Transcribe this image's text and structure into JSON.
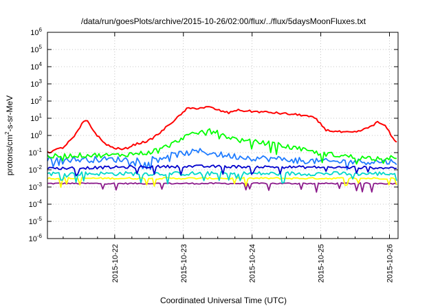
{
  "chart_data": {
    "type": "line",
    "title": "/data/run/goesPlots/archive/2015-10-26/02:00/flux/../flux/5daysMoonFluxes.txt",
    "xlabel": "Coordinated Universal Time (UTC)",
    "ylabel": "protons/cm²-s-sr-MeV",
    "yscale": "log",
    "ylim": [
      "1e-6",
      "1e6"
    ],
    "xlim": [
      "2015-10-21T00:30",
      "2015-10-26T03:00"
    ],
    "y_ticks": [
      {
        "base": "10",
        "exp": "-6",
        "value": 1e-06
      },
      {
        "base": "10",
        "exp": "-5",
        "value": 1e-05
      },
      {
        "base": "10",
        "exp": "-4",
        "value": 0.0001
      },
      {
        "base": "10",
        "exp": "-3",
        "value": 0.001
      },
      {
        "base": "10",
        "exp": "-2",
        "value": 0.01
      },
      {
        "base": "10",
        "exp": "-1",
        "value": 0.1
      },
      {
        "base": "10",
        "exp": "0",
        "value": 1
      },
      {
        "base": "10",
        "exp": "1",
        "value": 10
      },
      {
        "base": "10",
        "exp": "2",
        "value": 100
      },
      {
        "base": "10",
        "exp": "3",
        "value": 1000
      },
      {
        "base": "10",
        "exp": "4",
        "value": 10000
      },
      {
        "base": "10",
        "exp": "5",
        "value": 100000
      },
      {
        "base": "10",
        "exp": "6",
        "value": 1000000
      }
    ],
    "x_ticks": [
      "2015-10-22",
      "2015-10-23",
      "2015-10-24",
      "2015-10-25",
      "2015-10-26"
    ],
    "grid": true,
    "legend": "none",
    "series": [
      {
        "color": "#ff0000",
        "noise": 0.06,
        "x": [
          "2015-10-21T00:30",
          "2015-10-21T06:00",
          "2015-10-21T10:00",
          "2015-10-21T13:00",
          "2015-10-21T14:30",
          "2015-10-21T17:00",
          "2015-10-21T20:00",
          "2015-10-21T23:00",
          "2015-10-22T03:00",
          "2015-10-22T07:00",
          "2015-10-22T12:00",
          "2015-10-22T16:00",
          "2015-10-22T20:00",
          "2015-10-22T23:00",
          "2015-10-23T01:00",
          "2015-10-23T06:00",
          "2015-10-23T09:00",
          "2015-10-23T12:00",
          "2015-10-23T16:00",
          "2015-10-23T18:00",
          "2015-10-24T00:00",
          "2015-10-24T06:00",
          "2015-10-24T12:00",
          "2015-10-24T18:00",
          "2015-10-24T22:00",
          "2015-10-25T02:00",
          "2015-10-25T08:00",
          "2015-10-25T12:00",
          "2015-10-25T16:00",
          "2015-10-25T20:00",
          "2015-10-25T23:00",
          "2015-10-26T01:00",
          "2015-10-26T03:00"
        ],
        "y": [
          0.1,
          0.2,
          0.9,
          6,
          7,
          1.5,
          0.4,
          0.2,
          0.15,
          0.3,
          0.5,
          1.5,
          6,
          15,
          35,
          40,
          45,
          30,
          20,
          30,
          25,
          22,
          18,
          15,
          10,
          2,
          1.5,
          1.5,
          2.5,
          6,
          3,
          0.7,
          0.4
        ]
      },
      {
        "color": "#00ff00",
        "noise": 0.14,
        "x": [
          "2015-10-21T00:30",
          "2015-10-21T12:00",
          "2015-10-22T00:00",
          "2015-10-22T12:00",
          "2015-10-22T20:00",
          "2015-10-23T00:00",
          "2015-10-23T06:00",
          "2015-10-23T09:00",
          "2015-10-23T14:00",
          "2015-10-23T20:00",
          "2015-10-24T06:00",
          "2015-10-24T14:00",
          "2015-10-24T22:00",
          "2015-10-25T06:00",
          "2015-10-25T14:00",
          "2015-10-26T03:00"
        ],
        "y": [
          0.06,
          0.07,
          0.07,
          0.1,
          0.3,
          0.8,
          1.5,
          2.5,
          1,
          0.5,
          0.35,
          0.2,
          0.1,
          0.07,
          0.05,
          0.05
        ]
      },
      {
        "color": "#1e7bff",
        "noise": 0.18,
        "x": [
          "2015-10-21T00:30",
          "2015-10-22T00:00",
          "2015-10-22T12:00",
          "2015-10-22T22:00",
          "2015-10-23T06:00",
          "2015-10-23T14:00",
          "2015-10-24T00:00",
          "2015-10-24T12:00",
          "2015-10-25T00:00",
          "2015-10-26T03:00"
        ],
        "y": [
          0.04,
          0.04,
          0.04,
          0.08,
          0.12,
          0.07,
          0.05,
          0.04,
          0.03,
          0.03
        ]
      },
      {
        "color": "#00d8c8",
        "noise": 0.12,
        "x": [
          "2015-10-21T00:30",
          "2015-10-26T03:00"
        ],
        "y": [
          0.006,
          0.006
        ]
      },
      {
        "color": "#0000cc",
        "noise": 0.08,
        "x": [
          "2015-10-21T00:30",
          "2015-10-22T00:00",
          "2015-10-23T00:00",
          "2015-10-24T00:00",
          "2015-10-25T00:00",
          "2015-10-26T03:00"
        ],
        "y": [
          0.012,
          0.014,
          0.016,
          0.015,
          0.014,
          0.013
        ]
      },
      {
        "color": "#ffff00",
        "noise": 0.05,
        "x": [
          "2015-10-21T00:30",
          "2015-10-26T03:00"
        ],
        "y": [
          0.0032,
          0.0032
        ]
      },
      {
        "color": "#8b1a8b",
        "noise": 0.04,
        "x": [
          "2015-10-21T00:30",
          "2015-10-26T03:00"
        ],
        "y": [
          0.0016,
          0.0016
        ]
      }
    ]
  }
}
